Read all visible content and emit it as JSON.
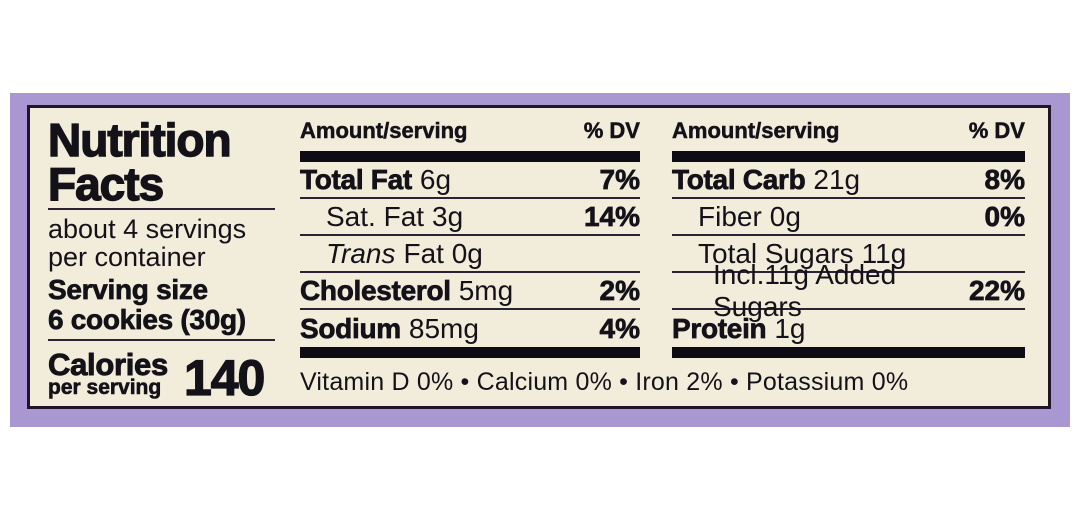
{
  "colors": {
    "page_background": "#ffffff",
    "frame_purple": "#a897d1",
    "panel_cream": "#f2ecdb",
    "ink_black": "#141219"
  },
  "label": {
    "title_line1": "Nutrition",
    "title_line2": "Facts",
    "servings_line1": "about 4 servings",
    "servings_line2": "per container",
    "serving_size_label": "Serving size",
    "serving_size_value": "6 cookies (30g)",
    "calories_label": "Calories",
    "calories_sublabel": "per serving",
    "calories_value": "140"
  },
  "columns": [
    {
      "header_amount": "Amount/serving",
      "header_dv": "% DV",
      "rows": [
        {
          "name": "Total Fat",
          "amount": "6g",
          "dv": "7%"
        },
        {
          "name": "Sat. Fat",
          "amount": "3g",
          "dv": "14%"
        },
        {
          "name": "Trans",
          "amount": "Fat 0g",
          "dv": ""
        },
        {
          "name": "Cholesterol",
          "amount": "5mg",
          "dv": "2%"
        },
        {
          "name": "Sodium",
          "amount": "85mg",
          "dv": "4%"
        }
      ]
    },
    {
      "header_amount": "Amount/serving",
      "header_dv": "% DV",
      "rows": [
        {
          "name": "Total Carb",
          "amount": "21g",
          "dv": "8%"
        },
        {
          "name": "Fiber",
          "amount": "0g",
          "dv": "0%"
        },
        {
          "name": "Total Sugars",
          "amount": "11g",
          "dv": ""
        },
        {
          "name": "Incl.11g Added Sugars",
          "amount": "",
          "dv": "22%"
        },
        {
          "name": "Protein",
          "amount": "1g",
          "dv": ""
        }
      ]
    }
  ],
  "footer": "Vitamin D 0% • Calcium 0% • Iron 2% • Potassium 0%"
}
